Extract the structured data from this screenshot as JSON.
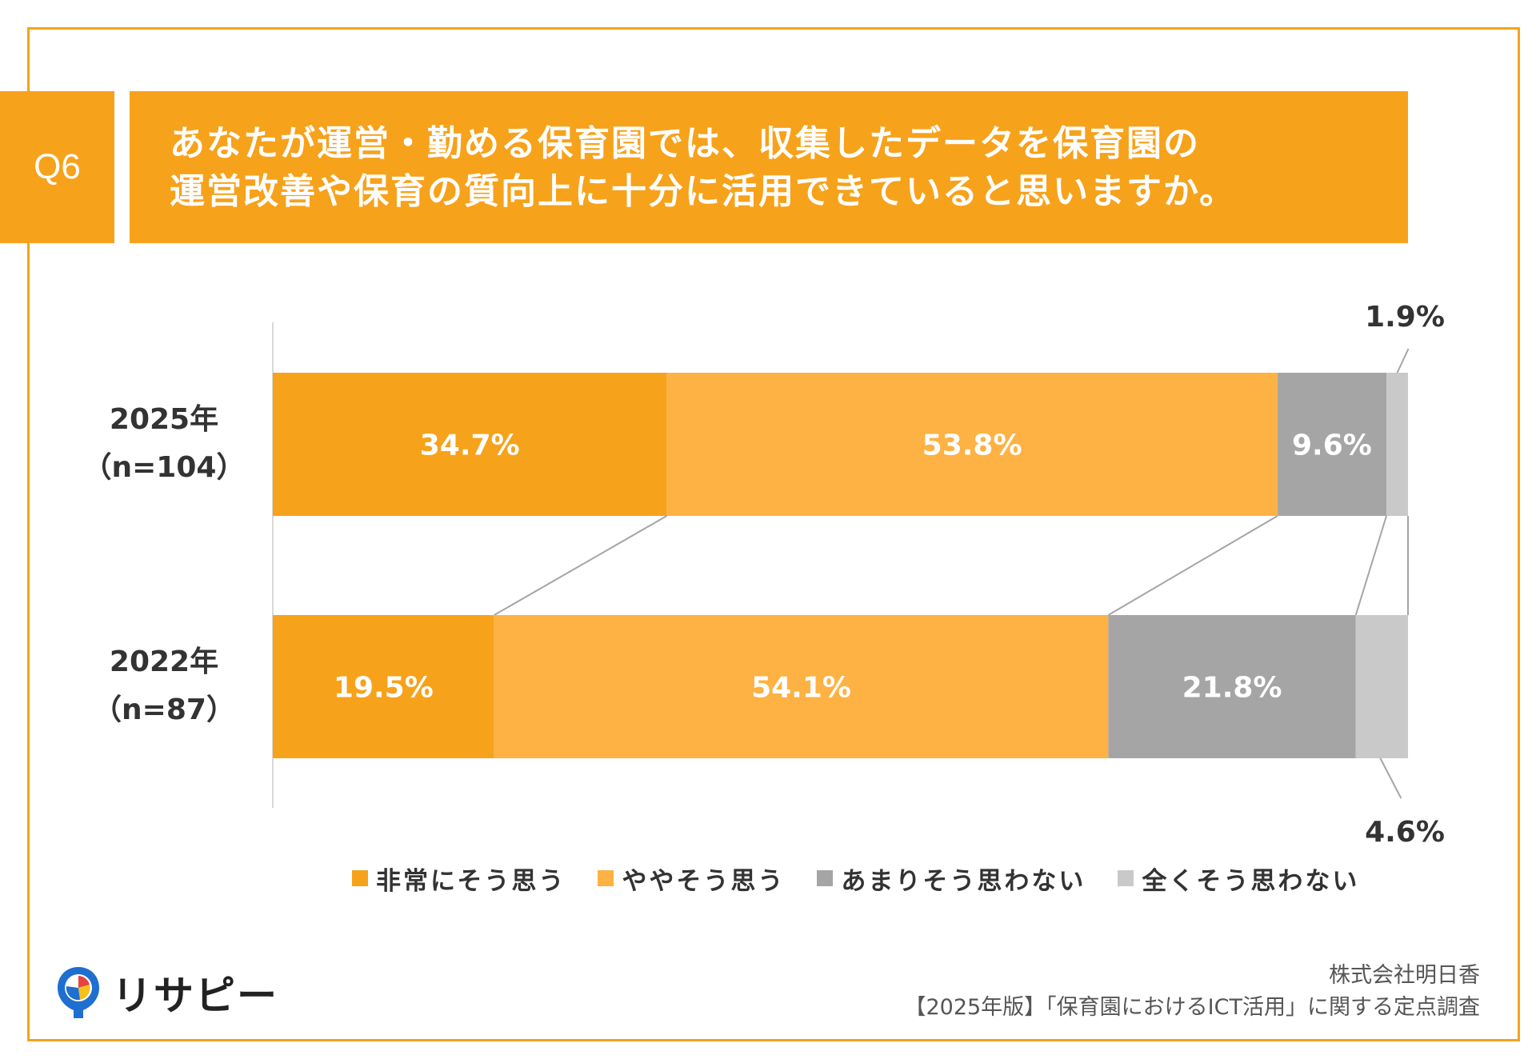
{
  "question": {
    "number": "Q6",
    "title_line1": "あなたが運営・勤める保育園では、収集したデータを保育園の",
    "title_line2": "運営改善や保育の質向上に十分に活用できていると思いますか。"
  },
  "chart_data": {
    "type": "bar",
    "orientation": "horizontal",
    "stacked": true,
    "percent_suffix": "%",
    "categories": [
      {
        "label": "2025年",
        "sublabel": "（n=104）"
      },
      {
        "label": "2022年",
        "sublabel": "（n=87）"
      }
    ],
    "series": [
      {
        "name": "非常にそう思う",
        "color": "#f7a21b",
        "values": [
          34.7,
          19.5
        ]
      },
      {
        "name": "ややそう思う",
        "color": "#fdb243",
        "values": [
          53.8,
          54.1
        ]
      },
      {
        "name": "あまりそう思わない",
        "color": "#a5a5a5",
        "values": [
          9.6,
          21.8
        ]
      },
      {
        "name": "全くそう思わない",
        "color": "#c9c9c9",
        "values": [
          1.9,
          4.6
        ]
      }
    ],
    "xlim": [
      0,
      100
    ],
    "legend_position": "bottom",
    "connector_lines": true
  },
  "logo": {
    "text": "リサピー"
  },
  "footer": {
    "company": "株式会社明日香",
    "survey": "【2025年版】「保育園におけるICT活用」に関する定点調査"
  }
}
